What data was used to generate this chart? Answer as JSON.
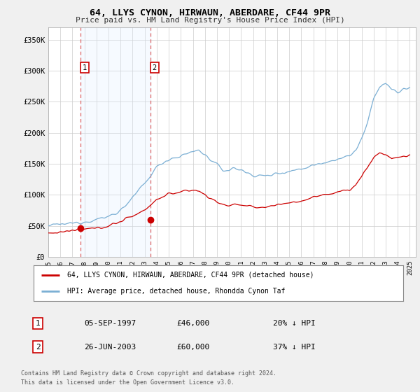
{
  "title": "64, LLYS CYNON, HIRWAUN, ABERDARE, CF44 9PR",
  "subtitle": "Price paid vs. HM Land Registry's House Price Index (HPI)",
  "ylim": [
    0,
    370000
  ],
  "xlim": [
    1995.0,
    2025.5
  ],
  "yticks": [
    0,
    50000,
    100000,
    150000,
    200000,
    250000,
    300000,
    350000
  ],
  "ytick_labels": [
    "£0",
    "£50K",
    "£100K",
    "£150K",
    "£200K",
    "£250K",
    "£300K",
    "£350K"
  ],
  "xticks": [
    1995,
    1996,
    1997,
    1998,
    1999,
    2000,
    2001,
    2002,
    2003,
    2004,
    2005,
    2006,
    2007,
    2008,
    2009,
    2010,
    2011,
    2012,
    2013,
    2014,
    2015,
    2016,
    2017,
    2018,
    2019,
    2020,
    2021,
    2022,
    2023,
    2024,
    2025
  ],
  "bg_color": "#f0f0f0",
  "plot_bg_color": "#ffffff",
  "grid_color": "#cccccc",
  "hpi_line_color": "#7bafd4",
  "price_line_color": "#cc0000",
  "vline_color": "#dd6666",
  "shade_color": "#ddeeff",
  "marker_color": "#cc0000",
  "sale1_year": 1997.68,
  "sale1_price": 46000,
  "sale2_year": 2003.49,
  "sale2_price": 60000,
  "legend_label_price": "64, LLYS CYNON, HIRWAUN, ABERDARE, CF44 9PR (detached house)",
  "legend_label_hpi": "HPI: Average price, detached house, Rhondda Cynon Taf",
  "table_row1": [
    "1",
    "05-SEP-1997",
    "£46,000",
    "20% ↓ HPI"
  ],
  "table_row2": [
    "2",
    "26-JUN-2003",
    "£60,000",
    "37% ↓ HPI"
  ],
  "footer1": "Contains HM Land Registry data © Crown copyright and database right 2024.",
  "footer2": "This data is licensed under the Open Government Licence v3.0."
}
